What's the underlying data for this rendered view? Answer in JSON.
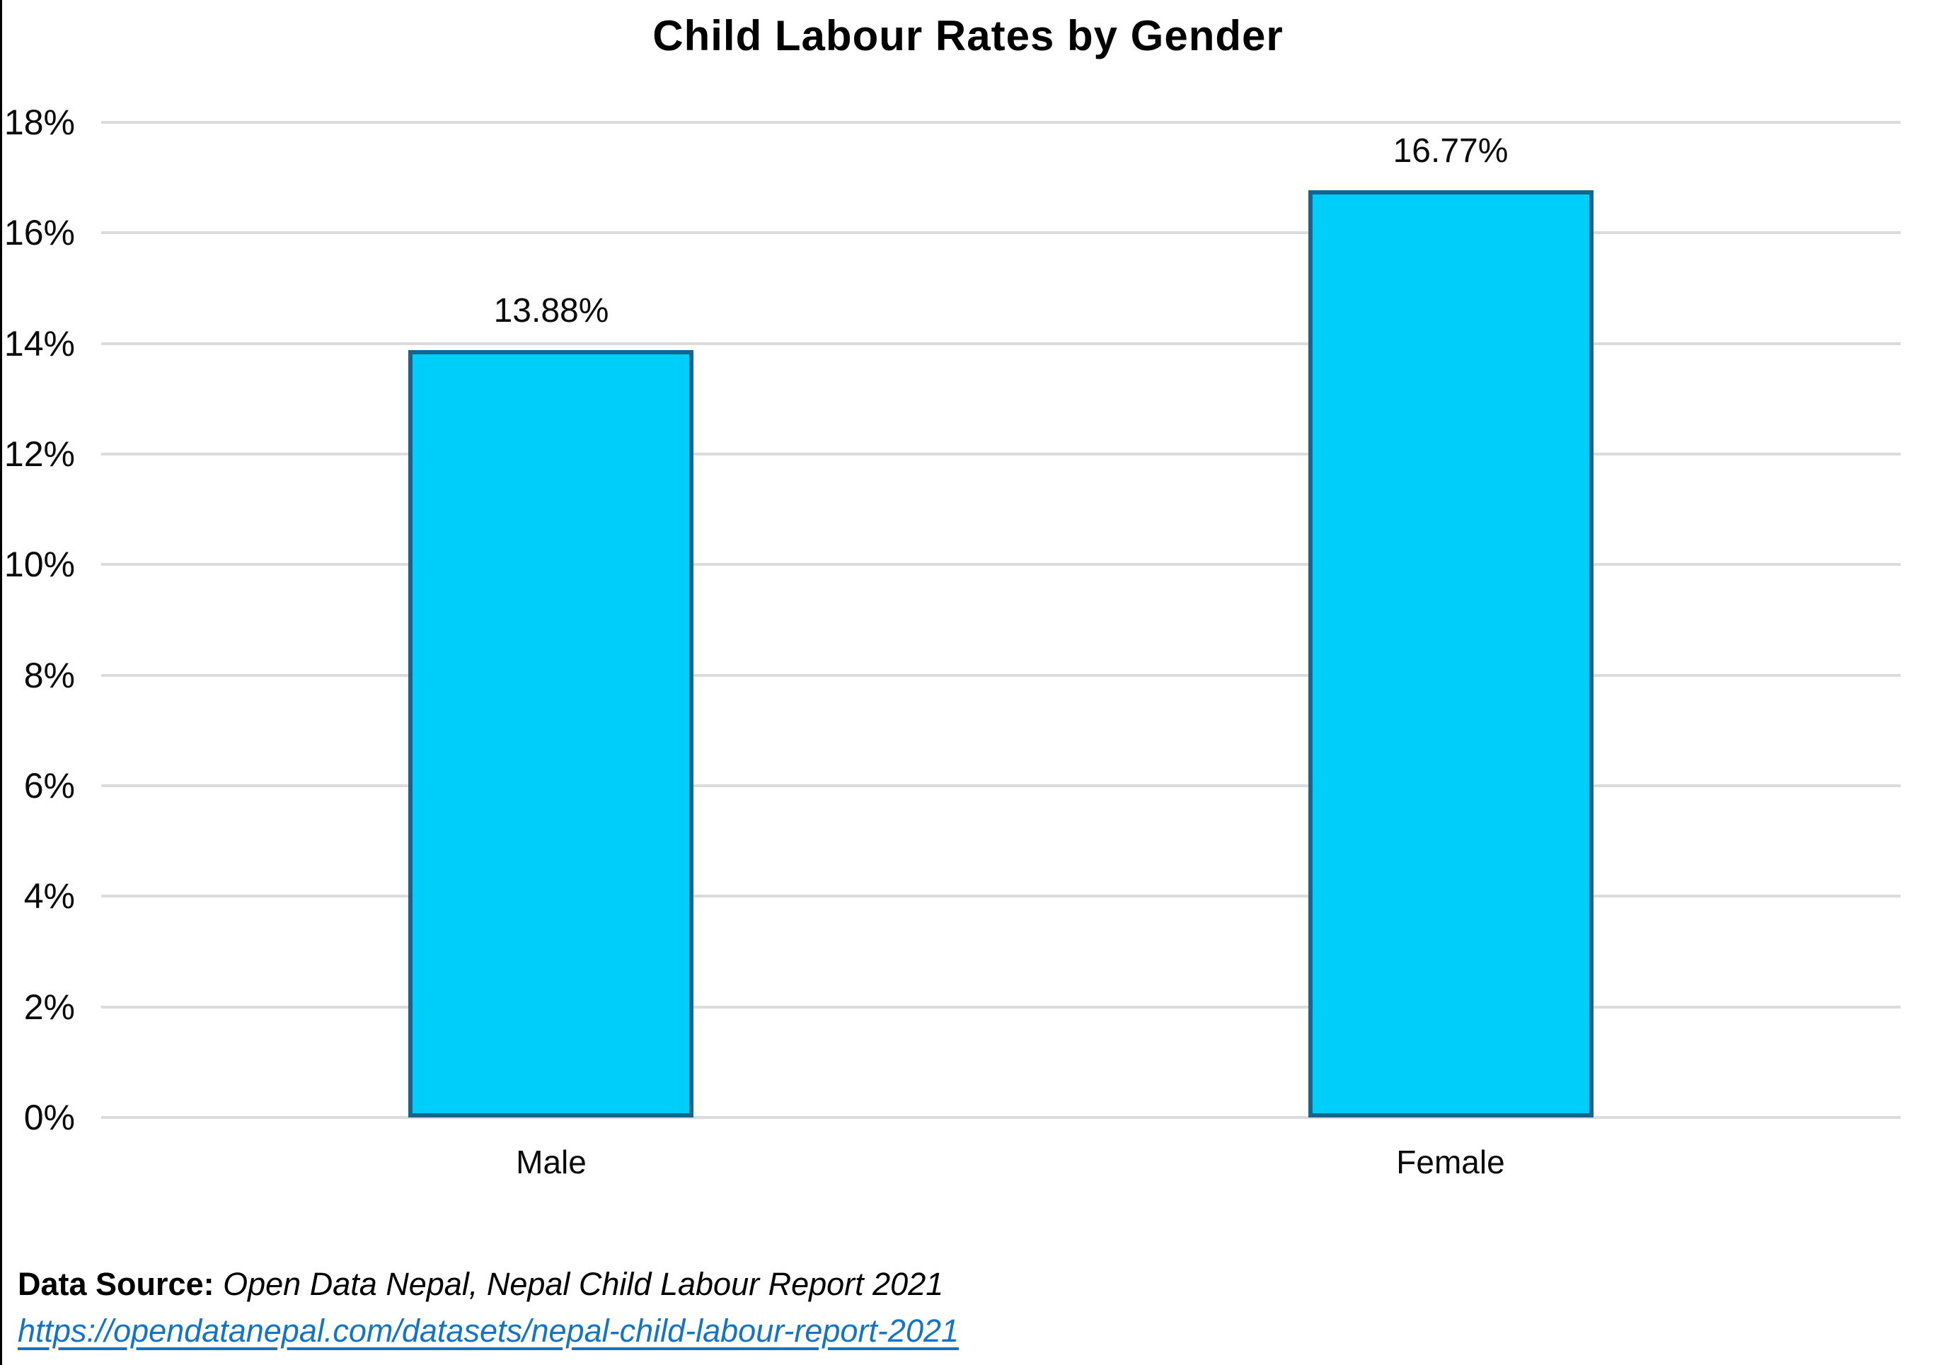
{
  "page": {
    "background_color": "#ffffff",
    "left_frame_color": "#000000"
  },
  "chart_data": {
    "type": "bar",
    "title": "Child Labour Rates by Gender",
    "categories": [
      "Male",
      "Female"
    ],
    "values": [
      13.88,
      16.77
    ],
    "value_labels": [
      "13.88%",
      "16.77%"
    ],
    "ylim": [
      0,
      18
    ],
    "ytick_step": 2,
    "ytick_labels": [
      "0%",
      "2%",
      "4%",
      "6%",
      "8%",
      "10%",
      "12%",
      "14%",
      "16%",
      "18%"
    ],
    "xlabel": "",
    "ylabel": "",
    "grid": "horizontal-on",
    "legend": "none",
    "bar_fill_color": "#00CEFA",
    "bar_border_color": "#17648F",
    "gridline_color": "#DBDBDB",
    "text_color": "#0a0a0a"
  },
  "footer": {
    "source_label": "Data Source:",
    "source_text": "Open Data Nepal, Nepal Child Labour Report 2021",
    "link_text": "https://opendatanepal.com/datasets/nepal-child-labour-report-2021",
    "link_color": "#1473C3"
  }
}
